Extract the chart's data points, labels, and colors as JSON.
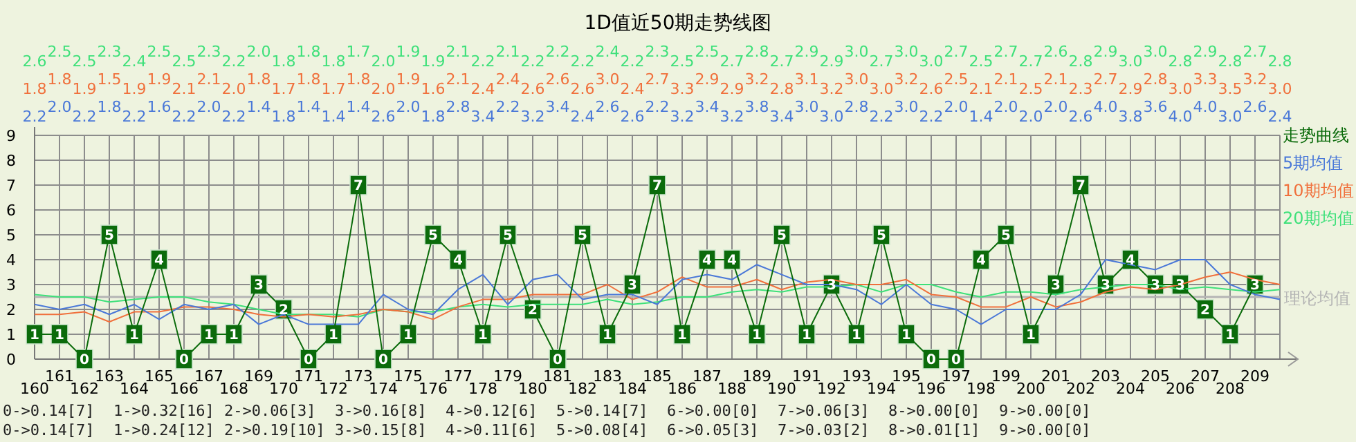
{
  "chart_data": {
    "type": "line",
    "title": "1D值近50期走势线图",
    "categories": [
      "160",
      "161",
      "162",
      "163",
      "164",
      "165",
      "166",
      "167",
      "168",
      "169",
      "170",
      "171",
      "172",
      "173",
      "174",
      "175",
      "176",
      "177",
      "178",
      "179",
      "180",
      "181",
      "182",
      "183",
      "184",
      "185",
      "186",
      "187",
      "188",
      "189",
      "190",
      "191",
      "192",
      "193",
      "194",
      "195",
      "196",
      "197",
      "198",
      "199",
      "200",
      "201",
      "202",
      "203",
      "204",
      "205",
      "206",
      "207",
      "208",
      "209",
      null
    ],
    "ylim": [
      0,
      9
    ],
    "yticks": [
      0,
      1,
      2,
      3,
      4,
      5,
      6,
      7,
      8,
      9
    ],
    "grid": true,
    "legend": "right",
    "series": [
      {
        "name": "走势曲线",
        "color": "#0b6b0b",
        "marker": "square",
        "values": [
          1,
          1,
          0,
          5,
          1,
          4,
          0,
          1,
          1,
          3,
          2,
          0,
          1,
          7,
          0,
          1,
          5,
          4,
          1,
          5,
          2,
          0,
          5,
          1,
          3,
          7,
          1,
          4,
          4,
          1,
          5,
          1,
          3,
          1,
          5,
          1,
          0,
          0,
          4,
          5,
          1,
          3,
          7,
          3,
          4,
          3,
          3,
          2,
          1,
          3,
          null
        ],
        "value_labels": [
          "1",
          "1",
          "0",
          "5",
          "1",
          "4",
          "0",
          "1",
          "1",
          "3",
          "2",
          "0",
          "1",
          "7",
          "0",
          "1",
          "5",
          "4",
          "1",
          "5",
          "2",
          "0",
          "5",
          "1",
          "3",
          "7",
          "1",
          "4",
          "4",
          "1",
          "5",
          "1",
          "3",
          "1",
          "5",
          "1",
          "0",
          "0",
          "4",
          "5",
          "1",
          "3",
          "7",
          "3",
          "4",
          "3",
          "3",
          "2",
          "1",
          "3",
          null
        ]
      },
      {
        "name": "5期均值",
        "color": "#4a78d8",
        "values": [
          2.2,
          2.0,
          2.2,
          1.8,
          2.2,
          1.6,
          2.2,
          2.0,
          2.2,
          1.4,
          1.8,
          1.4,
          1.4,
          1.4,
          2.6,
          2.0,
          1.8,
          2.8,
          3.4,
          2.2,
          3.2,
          3.4,
          2.4,
          2.6,
          2.6,
          2.2,
          3.2,
          3.4,
          3.2,
          3.8,
          3.4,
          3.0,
          3.0,
          2.8,
          2.2,
          3.0,
          2.2,
          2.0,
          1.4,
          2.0,
          2.0,
          2.0,
          2.6,
          4.0,
          3.8,
          3.6,
          4.0,
          4.0,
          3.0,
          2.6,
          2.4
        ]
      },
      {
        "name": "10期均值",
        "color": "#f0703c",
        "values": [
          1.8,
          1.8,
          1.9,
          1.5,
          1.9,
          1.9,
          2.1,
          2.1,
          2.0,
          1.8,
          1.7,
          1.8,
          1.7,
          1.8,
          2.0,
          1.9,
          1.6,
          2.1,
          2.4,
          2.4,
          2.6,
          2.6,
          2.6,
          3.0,
          2.4,
          2.7,
          3.3,
          2.9,
          2.9,
          3.2,
          2.8,
          3.1,
          3.2,
          3.0,
          3.0,
          3.2,
          2.6,
          2.5,
          2.1,
          2.1,
          2.5,
          2.1,
          2.3,
          2.7,
          2.9,
          2.8,
          3.0,
          3.3,
          3.5,
          3.2,
          3.0
        ]
      },
      {
        "name": "20期均值",
        "color": "#3ee07a",
        "values": [
          2.6,
          2.5,
          2.5,
          2.3,
          2.4,
          2.5,
          2.5,
          2.3,
          2.2,
          2.0,
          1.8,
          1.8,
          1.8,
          1.7,
          2.0,
          1.9,
          1.9,
          2.1,
          2.2,
          2.1,
          2.2,
          2.2,
          2.2,
          2.4,
          2.2,
          2.3,
          2.5,
          2.5,
          2.7,
          2.8,
          2.7,
          2.9,
          2.9,
          3.0,
          2.7,
          3.0,
          3.0,
          2.7,
          2.5,
          2.7,
          2.7,
          2.6,
          2.8,
          2.9,
          3.0,
          3.0,
          2.8,
          2.9,
          2.8,
          2.7,
          2.8
        ]
      }
    ],
    "ref_lines": [
      {
        "axis": "y",
        "value": 2.5,
        "label": "理论均值",
        "color": "#b4b4b4"
      }
    ],
    "annotations": [
      "2.6",
      "2.5",
      "2.5",
      "2.3",
      "2.4",
      "2.5",
      "2.5",
      "2.3",
      "2.2",
      "2.0",
      "1.8",
      "1.8",
      "1.8",
      "1.7",
      "2.0",
      "1.9",
      "1.9",
      "2.1",
      "2.2",
      "2.1",
      "2.2",
      "2.2",
      "2.2",
      "2.4",
      "2.2",
      "2.3",
      "2.5",
      "2.5",
      "2.7",
      "2.8",
      "2.7",
      "2.9",
      "2.9",
      "3.0",
      "2.7",
      "3.0",
      "3.0",
      "2.7",
      "2.5",
      "2.7",
      "2.7",
      "2.6",
      "2.8",
      "2.9",
      "3.0",
      "3.0",
      "2.8",
      "2.9",
      "2.8",
      "2.7",
      "2.8",
      "1.8",
      "1.8",
      "1.9",
      "1.5",
      "1.9",
      "1.9",
      "2.1",
      "2.1",
      "2.0",
      "1.8",
      "1.7",
      "1.8",
      "1.7",
      "1.8",
      "2.0",
      "1.9",
      "1.6",
      "2.1",
      "2.4",
      "2.4",
      "2.6",
      "2.6",
      "2.6",
      "3.0",
      "2.4",
      "2.7",
      "3.3",
      "2.9",
      "2.9",
      "3.2",
      "2.8",
      "3.1",
      "3.2",
      "3.0",
      "3.0",
      "3.2",
      "2.6",
      "2.5",
      "2.1",
      "2.1",
      "2.5",
      "2.1",
      "2.3",
      "2.7",
      "2.9",
      "2.8",
      "3.0",
      "3.3",
      "3.5",
      "3.2",
      "3.0",
      "2.2",
      "2.0",
      "2.2",
      "1.8",
      "2.2",
      "1.6",
      "2.2",
      "2.0",
      "2.2",
      "1.4",
      "1.8",
      "1.4",
      "1.4",
      "1.4",
      "2.6",
      "2.0",
      "1.8",
      "2.8",
      "3.4",
      "2.2",
      "3.2",
      "3.4",
      "2.4",
      "2.6",
      "2.6",
      "2.2",
      "3.2",
      "3.4",
      "3.2",
      "3.8",
      "3.4",
      "3.0",
      "3.0",
      "2.8",
      "2.2",
      "3.0",
      "2.2",
      "2.0",
      "1.4",
      "2.0",
      "2.0",
      "2.0",
      "2.6",
      "4.0",
      "3.8",
      "3.6",
      "4.0",
      "4.0",
      "3.0",
      "2.6",
      "2.4",
      "0->0.14[7]",
      "1->0.32[16]",
      "2->0.06[3]",
      "3->0.16[8]",
      "4->0.12[6]",
      "5->0.14[7]",
      "6->0.00[0]",
      "7->0.06[3]",
      "8->0.00[0]",
      "9->0.00[0]",
      "0->0.14[7]",
      "1->0.24[12]",
      "2->0.19[10]",
      "3->0.15[8]",
      "4->0.11[6]",
      "5->0.08[4]",
      "6->0.05[3]",
      "7->0.03[2]",
      "8->0.01[1]",
      "9->0.00[0]"
    ]
  }
}
